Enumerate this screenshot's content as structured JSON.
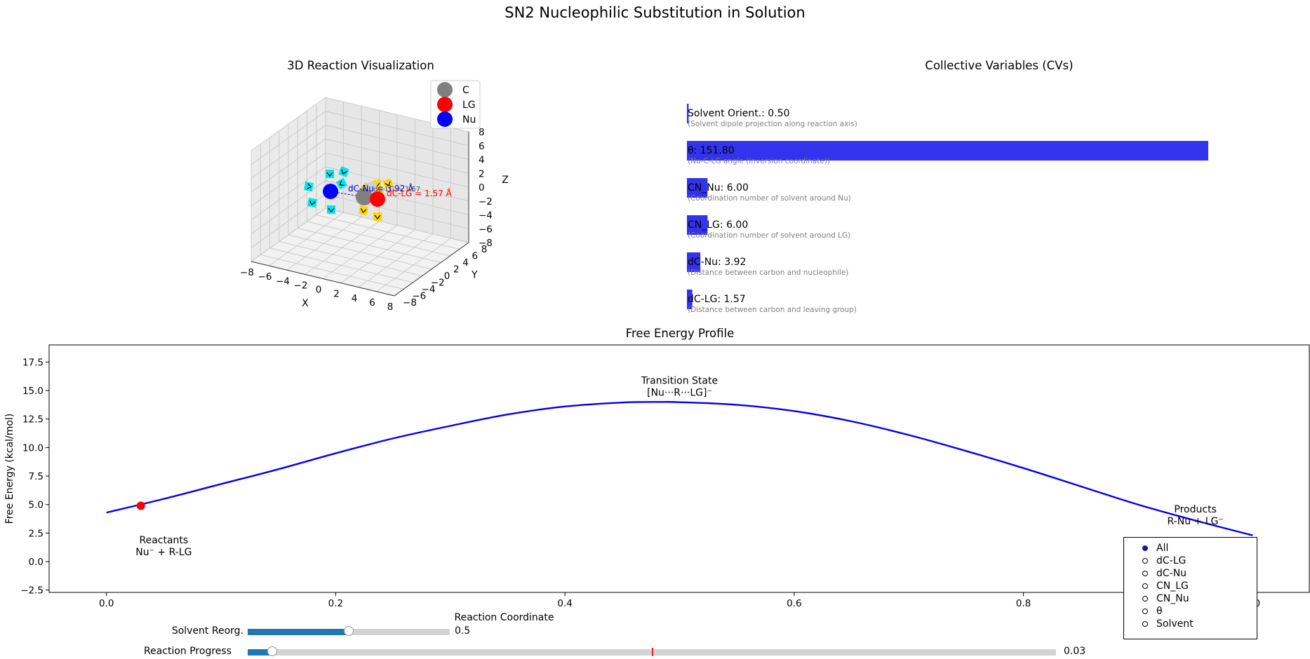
{
  "figure": {
    "title": "SN2 Nucleophilic Substitution in Solution"
  },
  "viz3d": {
    "title": "3D Reaction Visualization",
    "xlabel": "X",
    "ylabel": "Y",
    "zlabel": "Z",
    "ticks": [
      "−8",
      "−6",
      "−4",
      "−2",
      "0",
      "2",
      "4",
      "6",
      "8"
    ],
    "legend": [
      {
        "label": "C",
        "color": "#808080"
      },
      {
        "label": "LG",
        "color": "#ff0000"
      },
      {
        "label": "Nu",
        "color": "#0000ff"
      }
    ],
    "annotations": {
      "dc_nu": "dC-Nu = 3.92 Å",
      "dc_lg": "dC-LG = 1.57 Å",
      "overlap": "dC-LG = 1.57"
    },
    "solvent_colors": {
      "nu_shell": "#00e5ee",
      "lg_shell": "#ffd700"
    }
  },
  "cv_panel": {
    "title": "Collective Variables (CVs)",
    "bar_color": "#3333ee",
    "bar_scale_max": 151.8,
    "items": [
      {
        "label": "Solvent Orient.: 0.50",
        "value": 0.5,
        "desc": "(Solvent dipole projection along reaction axis)"
      },
      {
        "label": "θ: 151.80",
        "value": 151.8,
        "desc": "(Nu-C-LG angle (inversion coordinate))"
      },
      {
        "label": "CN_Nu: 6.00",
        "value": 6.0,
        "desc": "(Coordination number of solvent around Nu)"
      },
      {
        "label": "CN_LG: 6.00",
        "value": 6.0,
        "desc": "(Coordination number of solvent around LG)"
      },
      {
        "label": "dC-Nu: 3.92",
        "value": 3.92,
        "desc": "(Distance between carbon and nucleophile)"
      },
      {
        "label": "dC-LG: 1.57",
        "value": 1.57,
        "desc": "(Distance between carbon and leaving group)"
      }
    ]
  },
  "chart_data": {
    "type": "line",
    "title": "Free Energy Profile",
    "xlabel": "Reaction Coordinate",
    "ylabel": "Free Energy (kcal/mol)",
    "xlim": [
      -0.05,
      1.05
    ],
    "ylim": [
      -2.7,
      19.0
    ],
    "xticks": [
      "0.0",
      "0.2",
      "0.4",
      "0.6",
      "0.8",
      "1.0"
    ],
    "yticks": [
      "−2.5",
      "0.0",
      "2.5",
      "5.0",
      "7.5",
      "10.0",
      "12.5",
      "15.0",
      "17.5"
    ],
    "series": [
      {
        "color": "#0000ee",
        "x": [
          0,
          0.05,
          0.1,
          0.15,
          0.2,
          0.25,
          0.3,
          0.35,
          0.4,
          0.45,
          0.485,
          0.5,
          0.55,
          0.6,
          0.65,
          0.7,
          0.75,
          0.8,
          0.85,
          0.9,
          0.95,
          1.0
        ],
        "y": [
          4.3,
          5.5,
          6.8,
          8.1,
          9.5,
          10.8,
          11.9,
          12.9,
          13.6,
          13.95,
          14.0,
          13.98,
          13.75,
          13.2,
          12.3,
          11.1,
          9.7,
          8.2,
          6.6,
          5.0,
          3.6,
          2.3
        ]
      }
    ],
    "marker": {
      "x": 0.03,
      "y": 4.9,
      "color": "#ff0000"
    },
    "annotations": [
      {
        "lines": [
          "Reactants",
          "Nu⁻ + R-LG"
        ],
        "x": 0.05,
        "y": 1.6
      },
      {
        "lines": [
          "Transition State",
          "[Nu···R···LG]⁻"
        ],
        "x": 0.5,
        "y": 15.6
      },
      {
        "lines": [
          "Products",
          "R-Nu + LG⁻"
        ],
        "x": 0.95,
        "y": 4.3
      }
    ]
  },
  "controls": {
    "solvent_reorg": {
      "label": "Solvent Reorg.",
      "value": 0.5,
      "value_text": "0.5"
    },
    "reaction_progress": {
      "label": "Reaction Progress",
      "value": 0.03,
      "value_text": "0.03",
      "marker": 0.5
    }
  },
  "radio": {
    "selected": "All",
    "options": [
      "All",
      "dC-LG",
      "dC-Nu",
      "CN_LG",
      "CN_Nu",
      "θ",
      "Solvent"
    ]
  }
}
